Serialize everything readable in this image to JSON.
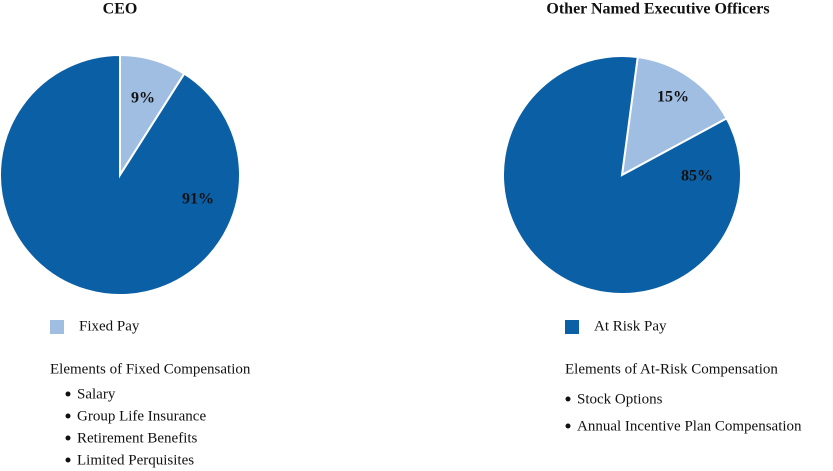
{
  "chart_data": [
    {
      "type": "pie",
      "title": "CEO",
      "categories": [
        "Fixed Pay",
        "At Risk Pay"
      ],
      "values": [
        9,
        91
      ],
      "value_labels": [
        "9%",
        "91%"
      ],
      "colors": [
        "#a0bde2",
        "#0b5fa5"
      ]
    },
    {
      "type": "pie",
      "title": "Other Named Executive Officers",
      "categories": [
        "Fixed Pay",
        "At Risk Pay"
      ],
      "values": [
        15,
        85
      ],
      "value_labels": [
        "15%",
        "85%"
      ],
      "colors": [
        "#a0bde2",
        "#0b5fa5"
      ]
    }
  ],
  "notes": [
    {
      "title": "Elements of Fixed Compensation",
      "items": [
        "Salary",
        "Group Life Insurance",
        "Retirement Benefits",
        "Limited Perquisites"
      ]
    },
    {
      "title": "Elements of At-Risk Compensation",
      "items": [
        "Stock Options",
        "Annual Incentive Plan Compensation"
      ]
    }
  ]
}
